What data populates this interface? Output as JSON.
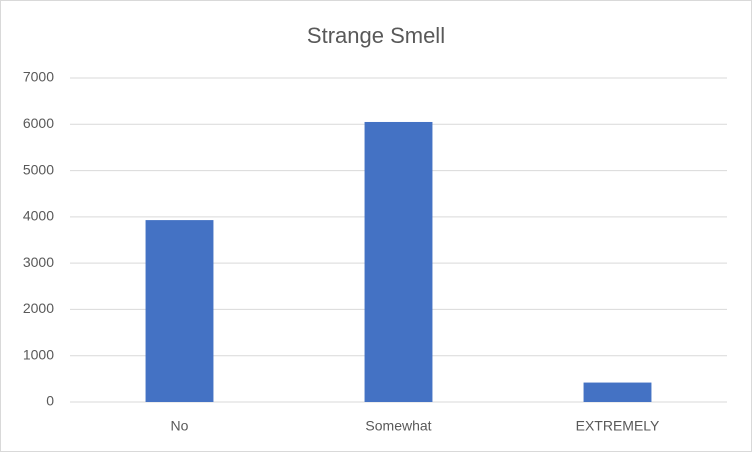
{
  "chart_data": {
    "type": "bar",
    "title": "Strange Smell",
    "categories": [
      "No",
      "Somewhat",
      "EXTREMELY"
    ],
    "values": [
      3930,
      6050,
      420
    ],
    "color": "#4472c4",
    "ylim": [
      0,
      7000
    ],
    "yticks": [
      0,
      1000,
      2000,
      3000,
      4000,
      5000,
      6000,
      7000
    ],
    "grid": true
  }
}
